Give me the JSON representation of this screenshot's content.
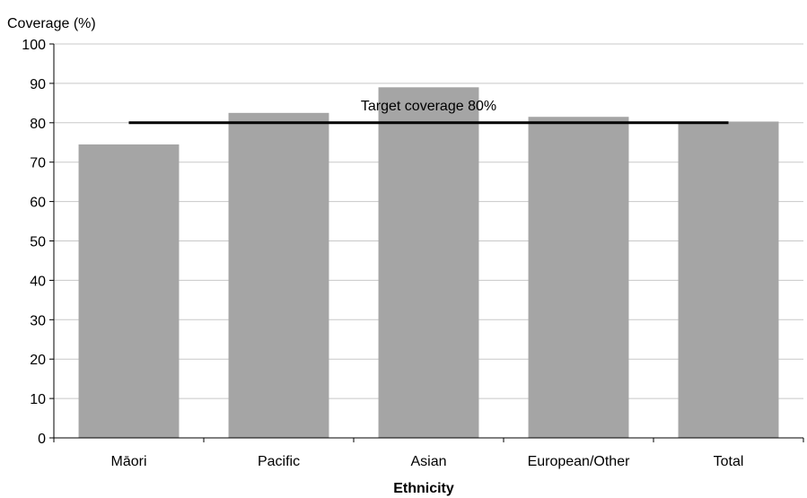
{
  "chart_data": {
    "type": "bar",
    "ylabel": "Coverage (%)",
    "xlabel": "Ethnicity",
    "categories": [
      "Māori",
      "Pacific",
      "Asian",
      "European/Other",
      "Total"
    ],
    "values": [
      74.5,
      82.5,
      89,
      81.5,
      80.3
    ],
    "ylim": [
      0,
      100
    ],
    "yticks": [
      0,
      10,
      20,
      30,
      40,
      50,
      60,
      70,
      80,
      90,
      100
    ],
    "grid": true,
    "reference_line": {
      "label": "Target coverage 80%",
      "value": 80
    },
    "colors": {
      "bar": "#a5a5a5",
      "reference_line": "#000000",
      "grid": "#c8c8c8"
    }
  }
}
